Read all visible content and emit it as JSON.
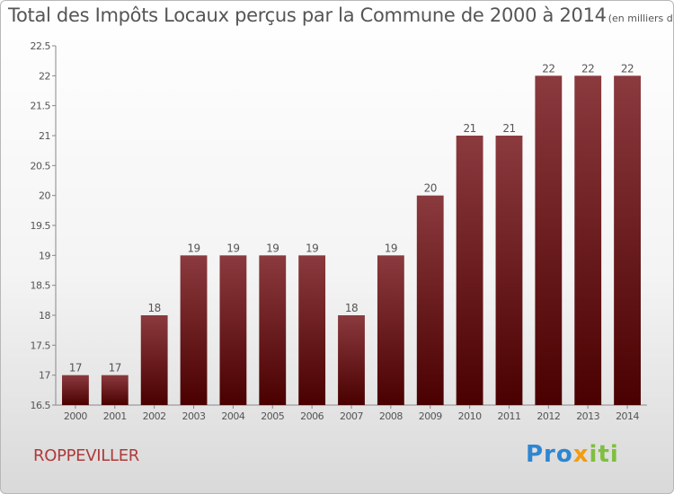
{
  "title": "Total des Impôts Locaux perçus par la Commune de 2000 à 2014",
  "subtitle": "(en milliers d'€)",
  "commune": "ROPPEVILLER",
  "logo": {
    "p1": "Pro",
    "p2": "x",
    "p3": "iti"
  },
  "colors": {
    "bar_top": "#8b3a3e",
    "bar_bottom": "#4a0000",
    "title": "#555555",
    "commune": "#b03a3a"
  },
  "chart_data": {
    "type": "bar",
    "title": "Total des Impôts Locaux perçus par la Commune de 2000 à 2014",
    "categories": [
      "2000",
      "2001",
      "2002",
      "2003",
      "2004",
      "2005",
      "2006",
      "2007",
      "2008",
      "2009",
      "2010",
      "2011",
      "2012",
      "2013",
      "2014"
    ],
    "values": [
      17,
      17,
      18,
      19,
      19,
      19,
      19,
      18,
      19,
      20,
      21,
      21,
      22,
      22,
      22
    ],
    "value_labels": [
      "17",
      "17",
      "18",
      "19",
      "19",
      "19",
      "19",
      "18",
      "19",
      "20",
      "21",
      "21",
      "22",
      "22",
      "22"
    ],
    "ylim": [
      16.5,
      22.5
    ],
    "yticks": [
      "16.5",
      "17",
      "17.5",
      "18",
      "18.5",
      "19",
      "19.5",
      "20",
      "20.5",
      "21",
      "21.5",
      "22",
      "22.5"
    ],
    "grid": false,
    "xlabel": "",
    "ylabel": ""
  }
}
